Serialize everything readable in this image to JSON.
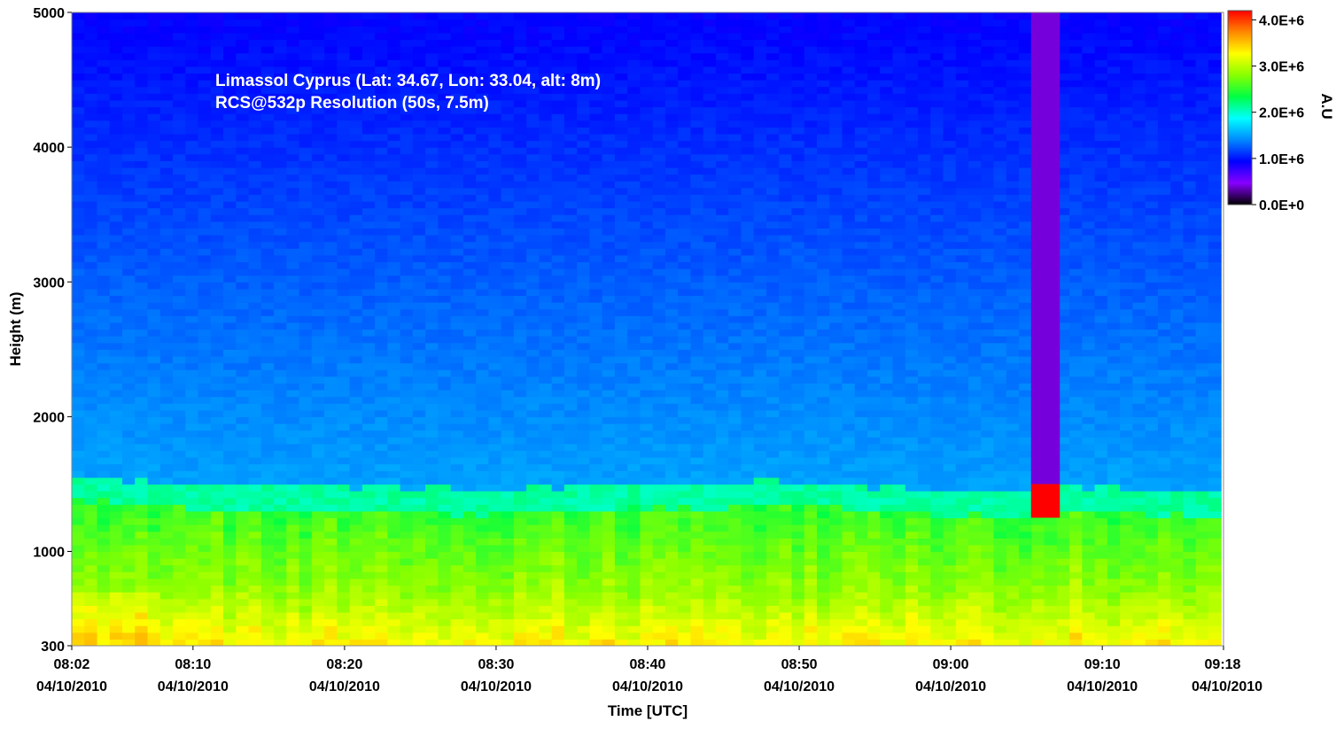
{
  "chart_data": {
    "type": "heatmap",
    "title": "",
    "annotations": [
      "Limassol Cyprus (Lat: 34.67, Lon: 33.04, alt: 8m)",
      "RCS@532p Resolution (50s, 7.5m)"
    ],
    "xlabel": "Time [UTC]",
    "ylabel": "Height (m)",
    "colorbar_label": "A.U",
    "x_start": "08:02",
    "x_end": "09:18",
    "x_range_minutes": [
      0,
      76
    ],
    "ylim": [
      300,
      5000
    ],
    "x_ticks": [
      {
        "time": "08:02",
        "date": "04/10/2010",
        "minute": 0
      },
      {
        "time": "08:10",
        "date": "04/10/2010",
        "minute": 8
      },
      {
        "time": "08:20",
        "date": "04/10/2010",
        "minute": 18
      },
      {
        "time": "08:30",
        "date": "04/10/2010",
        "minute": 28
      },
      {
        "time": "08:40",
        "date": "04/10/2010",
        "minute": 38
      },
      {
        "time": "08:50",
        "date": "04/10/2010",
        "minute": 48
      },
      {
        "time": "09:00",
        "date": "04/10/2010",
        "minute": 58
      },
      {
        "time": "09:10",
        "date": "04/10/2010",
        "minute": 68
      },
      {
        "time": "09:18",
        "date": "04/10/2010",
        "minute": 76
      }
    ],
    "y_ticks": [
      300,
      1000,
      2000,
      3000,
      4000,
      5000
    ],
    "colorbar": {
      "range": [
        0,
        4200000
      ],
      "ticks": [
        {
          "value": 0,
          "label": "0.0E+0"
        },
        {
          "value": 1000000,
          "label": "1.0E+6"
        },
        {
          "value": 2000000,
          "label": "2.0E+6"
        },
        {
          "value": 3000000,
          "label": "3.0E+6"
        },
        {
          "value": 4000000,
          "label": "4.0E+6"
        }
      ],
      "colormap": [
        "#000000",
        "#8800ff",
        "#0000ff",
        "#0088ff",
        "#00ffff",
        "#00ff44",
        "#88ff00",
        "#ffff00",
        "#ff8800",
        "#ff0000"
      ]
    },
    "boundary_layer_top_m": [
      {
        "minute": 0,
        "height": 1500
      },
      {
        "minute": 8,
        "height": 1440
      },
      {
        "minute": 18,
        "height": 1430
      },
      {
        "minute": 28,
        "height": 1400
      },
      {
        "minute": 38,
        "height": 1440
      },
      {
        "minute": 48,
        "height": 1460
      },
      {
        "minute": 58,
        "height": 1390
      },
      {
        "minute": 68,
        "height": 1420
      },
      {
        "minute": 76,
        "height": 1380
      }
    ],
    "features": [
      {
        "description": "cloud",
        "minute_start": 63.3,
        "minute_end": 65.2,
        "height_min": 1250,
        "height_max": 1500,
        "value": 4200000
      },
      {
        "description": "signal attenuation column above cloud",
        "minute_start": 63.3,
        "minute_end": 65.2,
        "height_min": 1500,
        "height_max": 5000,
        "value": 400000
      }
    ]
  }
}
